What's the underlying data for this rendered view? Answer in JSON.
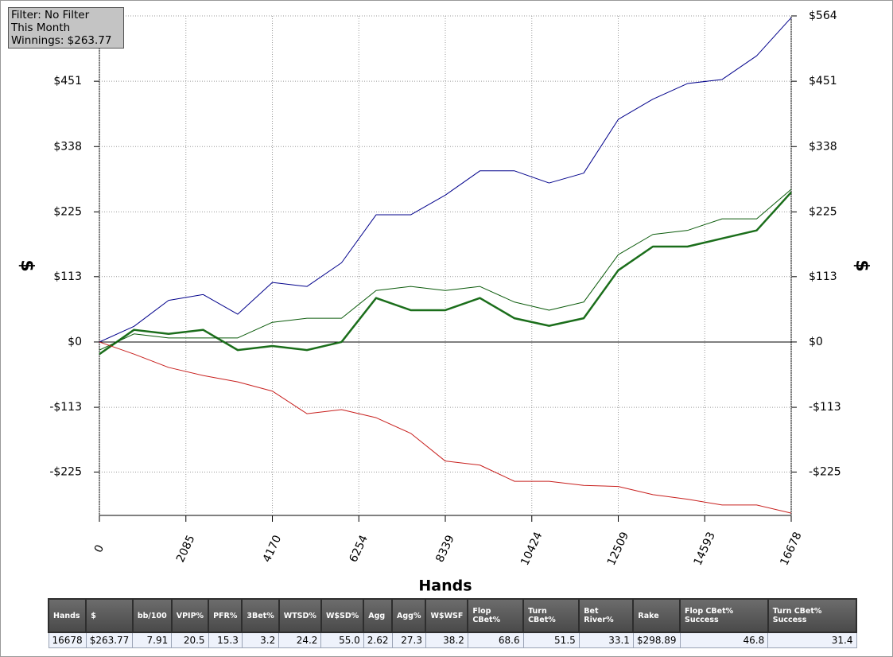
{
  "chart_data": {
    "type": "line",
    "xlabel": "Hands",
    "ylabel": "$",
    "y2label": "$",
    "x": [
      0,
      834,
      1668,
      2501,
      3335,
      4169,
      5003,
      5837,
      6671,
      7505,
      8339,
      9173,
      10007,
      10841,
      11675,
      12509,
      13343,
      14177,
      15011,
      15845,
      16678
    ],
    "series": [
      {
        "color": "#00008b",
        "width": 1,
        "values": [
          0,
          27,
          72,
          82,
          48,
          103,
          96,
          137,
          220,
          220,
          254,
          296,
          296,
          275,
          292,
          385,
          420,
          447,
          454,
          495,
          561
        ]
      },
      {
        "color": "#1b6e1b",
        "width": 2.5,
        "values": [
          -21,
          21,
          14,
          21,
          -14,
          -7,
          -14,
          0,
          76,
          55,
          55,
          76,
          41,
          28,
          41,
          124,
          165,
          165,
          179,
          193,
          259
        ]
      },
      {
        "color": "#0a5a0a",
        "width": 1,
        "values": [
          -14,
          14,
          7,
          7,
          7,
          34,
          41,
          41,
          89,
          96,
          89,
          96,
          69,
          55,
          69,
          151,
          186,
          193,
          213,
          213,
          264
        ]
      },
      {
        "color": "#c8201e",
        "width": 1,
        "values": [
          0,
          -21,
          -44,
          -58,
          -69,
          -85,
          -124,
          -117,
          -131,
          -158,
          -206,
          -213,
          -241,
          -241,
          -248,
          -250,
          -264,
          -272,
          -282,
          -282,
          -296
        ]
      }
    ],
    "xlim": [
      0,
      16678
    ],
    "xticks": [
      0,
      2085,
      4170,
      6254,
      8339,
      10424,
      12509,
      14593,
      16678
    ],
    "ylim": [
      -300,
      564
    ],
    "yticks": [
      {
        "value": -225,
        "label": "-$225"
      },
      {
        "value": -113,
        "label": "-$113"
      },
      {
        "value": 0,
        "label": "$0"
      },
      {
        "value": 113,
        "label": "$113"
      },
      {
        "value": 225,
        "label": "$225"
      },
      {
        "value": 338,
        "label": "$338"
      },
      {
        "value": 451,
        "label": "$451"
      },
      {
        "value": 564,
        "label": "$564"
      }
    ],
    "grid": true
  },
  "filter_box": {
    "lines": [
      "Filter: No Filter",
      "This Month",
      "Winnings: $263.77"
    ]
  },
  "stats_table": {
    "headers": [
      "Hands",
      "$",
      "bb/100",
      "VPIP%",
      "PFR%",
      "3Bet%",
      "WTSD%",
      "W$SD%",
      "Agg",
      "Agg%",
      "W$WSF",
      "Flop CBet%",
      "Turn CBet%",
      "Bet River%",
      "Rake",
      "Flop CBet% Success",
      "Turn CBet% Success"
    ],
    "row": [
      "16678",
      "$263.77",
      "7.91",
      "20.5",
      "15.3",
      "3.2",
      "24.2",
      "55.0",
      "2.62",
      "27.3",
      "38.2",
      "68.6",
      "51.5",
      "33.1",
      "$298.89",
      "46.8",
      "31.4"
    ]
  }
}
